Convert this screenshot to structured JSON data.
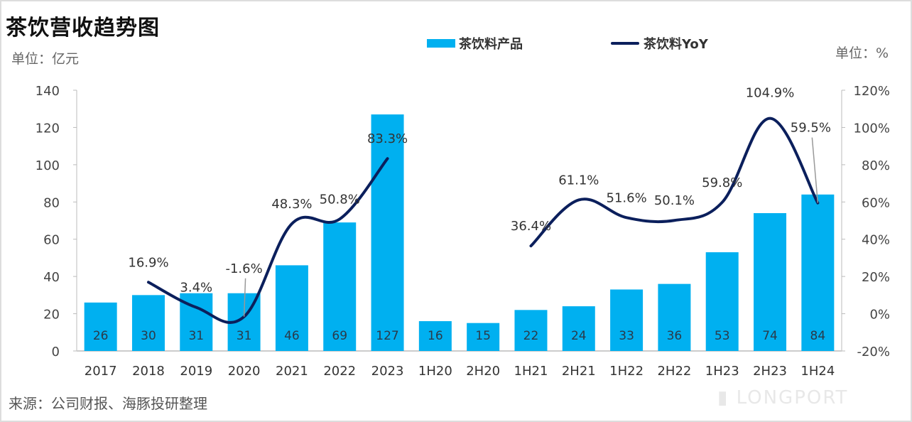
{
  "chart_data": {
    "type": "bar+line",
    "title": "茶饮营收趋势图",
    "ylabel_left": "单位：亿元",
    "ylabel_right": "单位：%",
    "source": "来源：公司财报、海豚投研整理",
    "categories": [
      "2017",
      "2018",
      "2019",
      "2020",
      "2021",
      "2022",
      "2023",
      "1H20",
      "2H20",
      "1H21",
      "2H21",
      "1H22",
      "2H22",
      "1H23",
      "2H23",
      "1H24"
    ],
    "ylim_left": [
      0,
      140
    ],
    "yticks_left": [
      0,
      20,
      40,
      60,
      80,
      100,
      120,
      140
    ],
    "ylim_right": [
      -20,
      120
    ],
    "yticks_right": [
      "-20%",
      "0%",
      "20%",
      "40%",
      "60%",
      "80%",
      "100%",
      "120%"
    ],
    "legend_position": "top",
    "series": [
      {
        "name": "茶饮料产品",
        "type": "bar",
        "axis": "left",
        "color": "#00b0f0",
        "values": [
          26,
          30,
          31,
          31,
          46,
          69,
          127,
          16,
          15,
          22,
          24,
          33,
          36,
          53,
          74,
          84
        ],
        "labels": [
          "26",
          "30",
          "31",
          "31",
          "46",
          "69",
          "127",
          "16",
          "15",
          "22",
          "24",
          "33",
          "36",
          "53",
          "74",
          "84"
        ]
      },
      {
        "name": "茶饮料YoY",
        "type": "line",
        "axis": "right",
        "color": "#0b1f5c",
        "values": [
          null,
          16.9,
          3.4,
          -1.6,
          48.3,
          50.8,
          83.3,
          null,
          null,
          36.4,
          61.1,
          51.6,
          50.1,
          59.8,
          104.9,
          59.5
        ],
        "labels": [
          null,
          "16.9%",
          "3.4%",
          "-1.6%",
          "48.3%",
          "50.8%",
          "83.3%",
          null,
          null,
          "36.4%",
          "61.1%",
          "51.6%",
          "50.1%",
          "59.8%",
          "104.9%",
          "59.5%"
        ]
      }
    ]
  },
  "watermark": "LONGPORT"
}
